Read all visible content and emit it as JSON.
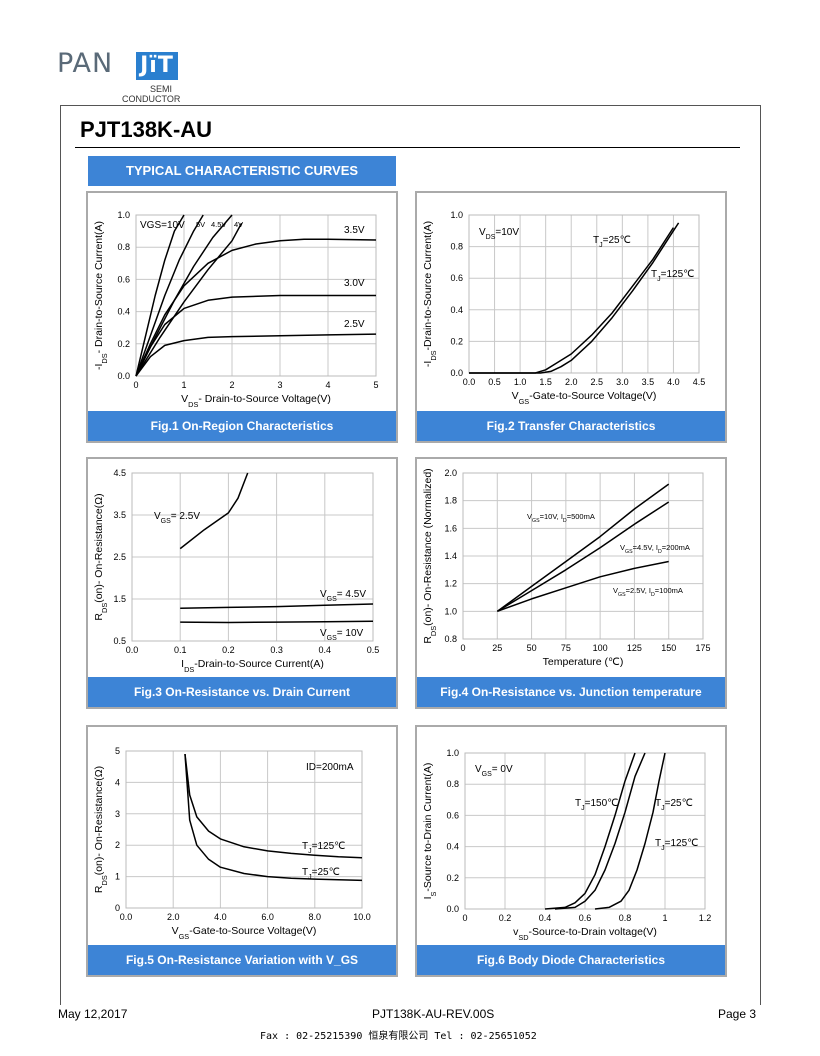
{
  "brand": {
    "pan": "PAN",
    "jit": "JïT",
    "semi": "SEMI",
    "conductor": "CONDUCTOR"
  },
  "doc": {
    "title": "PJT138K-AU",
    "section": "TYPICAL CHARACTERISTIC CURVES"
  },
  "footer": {
    "date": "May 12,2017",
    "rev": "PJT138K-AU-REV.00S",
    "page": "Page 3",
    "fax_line": "Fax : 02-25215390    恒泉有限公司    Tel : 02-25651052"
  },
  "colors": {
    "accent": "#3d84d6",
    "grid": "#c8c8c8",
    "line": "#000000"
  },
  "chart_data": [
    {
      "id": "fig1",
      "type": "line",
      "title": "Fig.1 On-Region Characteristics",
      "xlabel": "V_DS- Drain-to-Source Voltage(V)",
      "ylabel": "-I_DS- Drain-to-Source Current(A)",
      "xlim": [
        0,
        5
      ],
      "ylim": [
        0,
        1.0
      ],
      "xticks": [
        0,
        1,
        2,
        3,
        4,
        5
      ],
      "yticks": [
        0.0,
        0.2,
        0.4,
        0.6,
        0.8,
        1.0
      ],
      "xticklabels": [
        "0",
        "1",
        "2",
        "3",
        "4",
        "5"
      ],
      "yticklabels": [
        "0.0",
        "0.2",
        "0.4",
        "0.6",
        "0.8",
        "1.0"
      ],
      "series": [
        {
          "name": "VGS=10V",
          "x": [
            0,
            0.2,
            0.4,
            0.6,
            0.8,
            1.0
          ],
          "y": [
            0,
            0.25,
            0.5,
            0.72,
            0.9,
            1.0
          ]
        },
        {
          "name": "5V",
          "x": [
            0,
            0.3,
            0.6,
            0.9,
            1.2,
            1.4
          ],
          "y": [
            0,
            0.25,
            0.5,
            0.72,
            0.9,
            1.0
          ]
        },
        {
          "name": "4.5V",
          "x": [
            0,
            0.4,
            0.8,
            1.2,
            1.6,
            2.0
          ],
          "y": [
            0,
            0.24,
            0.47,
            0.68,
            0.86,
            1.0
          ]
        },
        {
          "name": "4V",
          "x": [
            0,
            0.5,
            1.0,
            1.5,
            2.0,
            2.2
          ],
          "y": [
            0,
            0.24,
            0.46,
            0.66,
            0.84,
            0.95
          ]
        },
        {
          "name": "3.5V",
          "x": [
            0,
            0.3,
            0.6,
            1.0,
            1.5,
            2.0,
            2.5,
            3.0,
            3.5,
            4.0,
            5.0
          ],
          "y": [
            0,
            0.2,
            0.38,
            0.56,
            0.7,
            0.78,
            0.82,
            0.84,
            0.85,
            0.85,
            0.845
          ]
        },
        {
          "name": "3.0V",
          "x": [
            0,
            0.3,
            0.6,
            1.0,
            1.5,
            2.0,
            3.0,
            4.0,
            5.0
          ],
          "y": [
            0,
            0.18,
            0.32,
            0.42,
            0.47,
            0.49,
            0.5,
            0.5,
            0.5
          ]
        },
        {
          "name": "2.5V",
          "x": [
            0,
            0.3,
            0.6,
            1.0,
            1.5,
            2.0,
            3.0,
            4.0,
            5.0
          ],
          "y": [
            0,
            0.12,
            0.19,
            0.22,
            0.24,
            0.245,
            0.25,
            0.255,
            0.26
          ]
        }
      ],
      "annotations": [
        "VGS=10V",
        "5V",
        "4.5V",
        "4V",
        "3.5V",
        "3.0V",
        "2.5V"
      ]
    },
    {
      "id": "fig2",
      "type": "line",
      "title": "Fig.2 Transfer Characteristics",
      "xlabel": "V_GS-Gate-to-Source Voltage(V)",
      "ylabel": "-I_DS-Drain-to-Source Current(A)",
      "xlim": [
        0,
        4.5
      ],
      "ylim": [
        0,
        1.0
      ],
      "xticks": [
        0,
        0.5,
        1,
        1.5,
        2,
        2.5,
        3,
        3.5,
        4,
        4.5
      ],
      "yticks": [
        0,
        0.2,
        0.4,
        0.6,
        0.8,
        1.0
      ],
      "xticklabels": [
        "0.0",
        "0.5",
        "1.0",
        "1.5",
        "2.0",
        "2.5",
        "3.0",
        "3.5",
        "4.0",
        "4.5"
      ],
      "yticklabels": [
        "0.0",
        "0.2",
        "0.4",
        "0.6",
        "0.8",
        "1.0"
      ],
      "series": [
        {
          "name": "TJ=25℃",
          "x": [
            0,
            1.4,
            1.6,
            1.8,
            2.0,
            2.4,
            2.8,
            3.2,
            3.6,
            4.0,
            4.1
          ],
          "y": [
            0,
            0,
            0.01,
            0.04,
            0.08,
            0.2,
            0.35,
            0.52,
            0.7,
            0.9,
            0.95
          ]
        },
        {
          "name": "TJ=125℃",
          "x": [
            0,
            1.3,
            1.5,
            1.7,
            2.0,
            2.4,
            2.8,
            3.2,
            3.6,
            3.9,
            4.0
          ],
          "y": [
            0,
            0,
            0.02,
            0.06,
            0.12,
            0.24,
            0.38,
            0.55,
            0.72,
            0.87,
            0.92
          ]
        }
      ],
      "annotations": [
        "V_DS=10V",
        "T_J=25℃",
        "T_J=125℃"
      ]
    },
    {
      "id": "fig3",
      "type": "line",
      "title": "Fig.3 On-Resistance vs. Drain Current",
      "xlabel": "I_DS-Drain-to-Source  Current(A)",
      "ylabel": "R_DS(on)- On-Resistance(Ω)",
      "xlim": [
        0,
        0.5
      ],
      "ylim": [
        0.5,
        4.5
      ],
      "xticks": [
        0,
        0.1,
        0.2,
        0.3,
        0.4,
        0.5
      ],
      "yticks": [
        0.5,
        1.5,
        2.5,
        3.5,
        4.5
      ],
      "xticklabels": [
        "0.0",
        "0.1",
        "0.2",
        "0.3",
        "0.4",
        "0.5"
      ],
      "yticklabels": [
        "0.5",
        "1.5",
        "2.5",
        "3.5",
        "4.5"
      ],
      "series": [
        {
          "name": "VGS=2.5V",
          "x": [
            0.1,
            0.15,
            0.2,
            0.22,
            0.24
          ],
          "y": [
            2.7,
            3.15,
            3.55,
            3.9,
            4.5
          ]
        },
        {
          "name": "VGS=4.5V",
          "x": [
            0.1,
            0.2,
            0.3,
            0.4,
            0.5
          ],
          "y": [
            1.28,
            1.3,
            1.32,
            1.35,
            1.38
          ]
        },
        {
          "name": "VGS=10V",
          "x": [
            0.1,
            0.2,
            0.3,
            0.4,
            0.5
          ],
          "y": [
            0.95,
            0.94,
            0.95,
            0.96,
            0.97
          ]
        }
      ],
      "annotations": [
        "V_GS= 2.5V",
        "V_GS= 4.5V",
        "V_GS= 10V"
      ]
    },
    {
      "id": "fig4",
      "type": "line",
      "title": "Fig.4 On-Resistance vs. Junction temperature",
      "xlabel": "Temperature (℃)",
      "ylabel": "R_DS(on)- On-Resistance (Normalized)",
      "xlim": [
        0,
        175
      ],
      "ylim": [
        0.8,
        2.0
      ],
      "xticks": [
        0,
        25,
        50,
        75,
        100,
        125,
        150,
        175
      ],
      "yticks": [
        0.8,
        1.0,
        1.2,
        1.4,
        1.6,
        1.8,
        2.0
      ],
      "xticklabels": [
        "0",
        "25",
        "50",
        "75",
        "100",
        "125",
        "150",
        "175"
      ],
      "yticklabels": [
        "0.8",
        "1.0",
        "1.2",
        "1.4",
        "1.6",
        "1.8",
        "2.0"
      ],
      "series": [
        {
          "name": "VGS=10V, ID=500mA",
          "x": [
            25,
            50,
            75,
            100,
            125,
            150
          ],
          "y": [
            1.0,
            1.18,
            1.36,
            1.54,
            1.74,
            1.92
          ]
        },
        {
          "name": "VGS=4.5V, ID=200mA",
          "x": [
            25,
            50,
            75,
            100,
            125,
            150
          ],
          "y": [
            1.0,
            1.15,
            1.3,
            1.46,
            1.63,
            1.79
          ]
        },
        {
          "name": "VGS=2.5V, ID=100mA",
          "x": [
            25,
            50,
            75,
            100,
            125,
            150
          ],
          "y": [
            1.0,
            1.09,
            1.17,
            1.25,
            1.31,
            1.36
          ]
        }
      ],
      "annotations": [
        "V_GS=10V, I_D=500mA",
        "V_GS=4.5V, I_D=200mA",
        "V_GS=2.5V, I_D=100mA"
      ]
    },
    {
      "id": "fig5",
      "type": "line",
      "title": "Fig.5 On-Resistance Variation with V_GS",
      "xlabel": "V_GS-Gate-to-Source Voltage(V)",
      "ylabel": "R_DS(on)- On-Resistance(Ω)",
      "xlim": [
        0,
        10
      ],
      "ylim": [
        0,
        5
      ],
      "xticks": [
        0,
        2,
        4,
        6,
        8,
        10
      ],
      "yticks": [
        0,
        1,
        2,
        3,
        4,
        5
      ],
      "xticklabels": [
        "0.0",
        "2.0",
        "4.0",
        "6.0",
        "8.0",
        "10.0"
      ],
      "yticklabels": [
        "0",
        "1",
        "2",
        "3",
        "4",
        "5"
      ],
      "series": [
        {
          "name": "TJ=125℃",
          "x": [
            2.5,
            2.7,
            3.0,
            3.5,
            4.0,
            5.0,
            6.0,
            7.0,
            8.0,
            9.0,
            10.0
          ],
          "y": [
            4.9,
            3.6,
            2.9,
            2.45,
            2.2,
            1.95,
            1.82,
            1.74,
            1.68,
            1.63,
            1.6
          ]
        },
        {
          "name": "TJ=25℃",
          "x": [
            2.5,
            2.7,
            3.0,
            3.5,
            4.0,
            5.0,
            6.0,
            7.0,
            8.0,
            9.0,
            10.0
          ],
          "y": [
            4.9,
            2.8,
            2.0,
            1.55,
            1.3,
            1.1,
            1.0,
            0.95,
            0.92,
            0.9,
            0.88
          ]
        }
      ],
      "annotations": [
        "ID=200mA",
        "T_J=125℃",
        "T_J=25℃"
      ]
    },
    {
      "id": "fig6",
      "type": "line",
      "title": "Fig.6 Body Diode Characteristics",
      "xlabel": "v_SD-Source-to-Drain  voltage(V)",
      "ylabel": "I_S-Source  to-Drain Current(A)",
      "xlim": [
        0,
        1.2
      ],
      "ylim": [
        0,
        1.0
      ],
      "xticks": [
        0,
        0.2,
        0.4,
        0.6,
        0.8,
        1.0,
        1.2
      ],
      "yticks": [
        0,
        0.2,
        0.4,
        0.6,
        0.8,
        1.0
      ],
      "xticklabels": [
        "0",
        "0.2",
        "0.4",
        "0.6",
        "0.8",
        "1",
        "1.2"
      ],
      "yticklabels": [
        "0.0",
        "0.2",
        "0.4",
        "0.6",
        "0.8",
        "1.0"
      ],
      "series": [
        {
          "name": "TJ=150℃",
          "x": [
            0.4,
            0.5,
            0.55,
            0.6,
            0.65,
            0.7,
            0.75,
            0.8,
            0.85
          ],
          "y": [
            0,
            0.01,
            0.04,
            0.1,
            0.22,
            0.4,
            0.6,
            0.82,
            1.0
          ]
        },
        {
          "name": "TJ=125℃",
          "x": [
            0.45,
            0.55,
            0.6,
            0.65,
            0.7,
            0.75,
            0.8,
            0.85,
            0.9
          ],
          "y": [
            0,
            0.01,
            0.05,
            0.12,
            0.25,
            0.42,
            0.62,
            0.85,
            1.0
          ]
        },
        {
          "name": "TJ=25℃",
          "x": [
            0.65,
            0.72,
            0.78,
            0.82,
            0.86,
            0.9,
            0.94,
            0.97,
            1.0
          ],
          "y": [
            0,
            0.01,
            0.05,
            0.12,
            0.25,
            0.42,
            0.62,
            0.82,
            1.0
          ]
        }
      ],
      "annotations": [
        "V_GS= 0V",
        "T_J=150℃",
        "T_J=25℃",
        "T_J=125℃"
      ]
    }
  ]
}
